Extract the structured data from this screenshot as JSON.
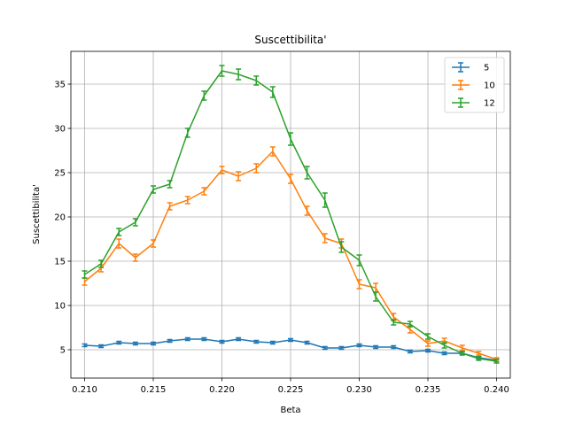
{
  "chart_data": {
    "type": "line",
    "title": "Suscettibilita'",
    "xlabel": "Beta",
    "ylabel": "Suscettibilita'",
    "xlim": [
      0.209,
      0.241
    ],
    "ylim": [
      1.8,
      38.7
    ],
    "xticks": [
      0.21,
      0.215,
      0.22,
      0.225,
      0.23,
      0.235,
      0.24
    ],
    "xtick_labels": [
      "0.210",
      "0.215",
      "0.220",
      "0.225",
      "0.230",
      "0.235",
      "0.240"
    ],
    "yticks": [
      5,
      10,
      15,
      20,
      25,
      30,
      35
    ],
    "ytick_labels": [
      "5",
      "10",
      "15",
      "20",
      "25",
      "30",
      "35"
    ],
    "grid": true,
    "legend": "top-right",
    "x": [
      0.21,
      0.2112,
      0.2125,
      0.2137,
      0.215,
      0.2162,
      0.2175,
      0.2187,
      0.22,
      0.2212,
      0.2225,
      0.2237,
      0.225,
      0.2262,
      0.2275,
      0.2287,
      0.23,
      0.2312,
      0.2325,
      0.2337,
      0.235,
      0.2362,
      0.2375,
      0.2387,
      0.24
    ],
    "series": [
      {
        "name": "5",
        "color": "#1f77b4",
        "values": [
          5.5,
          5.4,
          5.8,
          5.7,
          5.7,
          6.0,
          6.2,
          6.2,
          5.9,
          6.2,
          5.9,
          5.8,
          6.1,
          5.8,
          5.2,
          5.2,
          5.5,
          5.3,
          5.3,
          4.8,
          4.9,
          4.6,
          4.6,
          4.1,
          3.8
        ],
        "errors": [
          0.15,
          0.15,
          0.15,
          0.15,
          0.15,
          0.15,
          0.15,
          0.15,
          0.15,
          0.15,
          0.15,
          0.15,
          0.15,
          0.15,
          0.15,
          0.15,
          0.15,
          0.15,
          0.15,
          0.15,
          0.15,
          0.15,
          0.15,
          0.15,
          0.15
        ]
      },
      {
        "name": "10",
        "color": "#ff7f0e",
        "values": [
          12.7,
          14.2,
          17.0,
          15.4,
          17.0,
          21.2,
          21.9,
          22.9,
          25.3,
          24.6,
          25.5,
          27.4,
          24.3,
          20.7,
          17.6,
          17.0,
          12.4,
          12.0,
          8.7,
          7.3,
          5.7,
          6.0,
          5.2,
          4.6,
          3.9
        ],
        "errors": [
          0.4,
          0.4,
          0.5,
          0.4,
          0.4,
          0.4,
          0.4,
          0.4,
          0.4,
          0.5,
          0.5,
          0.5,
          0.5,
          0.5,
          0.5,
          0.5,
          0.5,
          0.5,
          0.4,
          0.4,
          0.3,
          0.3,
          0.3,
          0.2,
          0.2
        ]
      },
      {
        "name": "12",
        "color": "#2ca02c",
        "values": [
          13.5,
          14.7,
          18.3,
          19.4,
          23.1,
          23.7,
          29.5,
          33.7,
          36.5,
          36.1,
          35.4,
          34.1,
          28.8,
          25.0,
          21.9,
          16.6,
          15.1,
          11.0,
          8.1,
          7.9,
          6.5,
          5.5,
          4.6,
          4.0,
          3.7
        ],
        "errors": [
          0.4,
          0.4,
          0.4,
          0.4,
          0.4,
          0.4,
          0.5,
          0.5,
          0.6,
          0.6,
          0.5,
          0.6,
          0.7,
          0.7,
          0.8,
          0.6,
          0.6,
          0.5,
          0.3,
          0.3,
          0.3,
          0.3,
          0.2,
          0.2,
          0.2
        ]
      }
    ]
  }
}
